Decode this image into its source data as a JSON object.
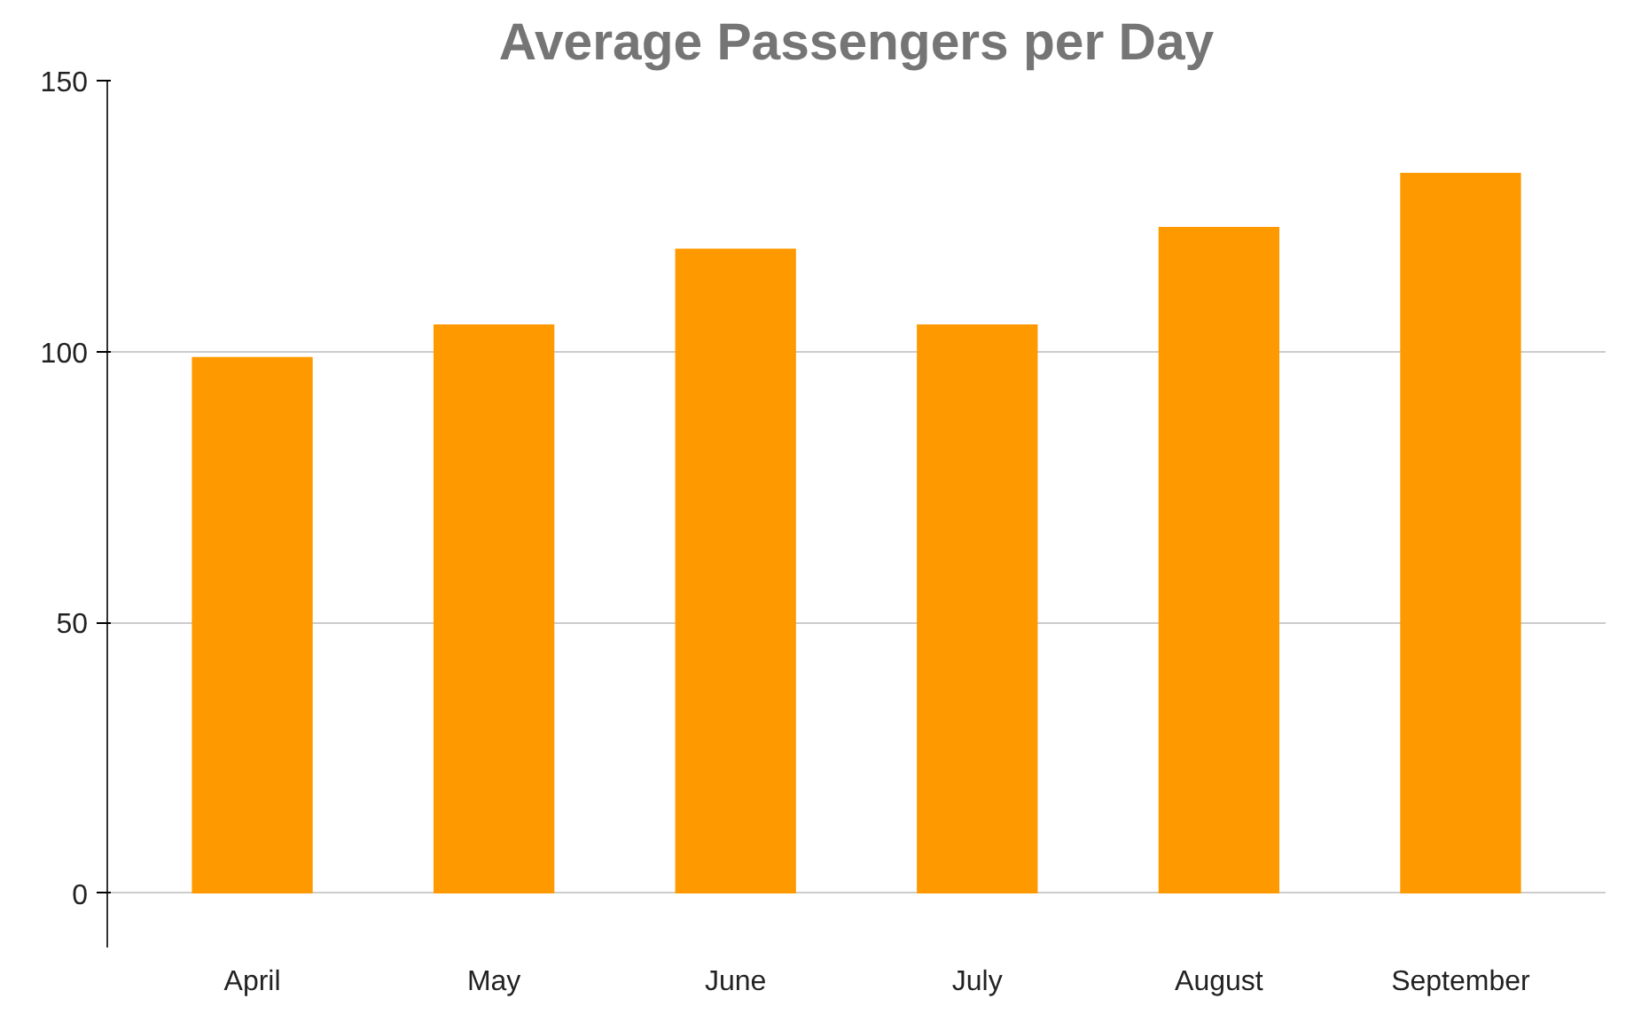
{
  "chart_data": {
    "type": "bar",
    "title": "Average Passengers per Day",
    "categories": [
      "April",
      "May",
      "June",
      "July",
      "August",
      "September"
    ],
    "values": [
      99,
      105,
      119,
      105,
      123,
      133
    ],
    "color": "#ff9900",
    "ylim": [
      -10,
      150
    ],
    "yticks": [
      0,
      50,
      100,
      150
    ],
    "grid": "y"
  }
}
